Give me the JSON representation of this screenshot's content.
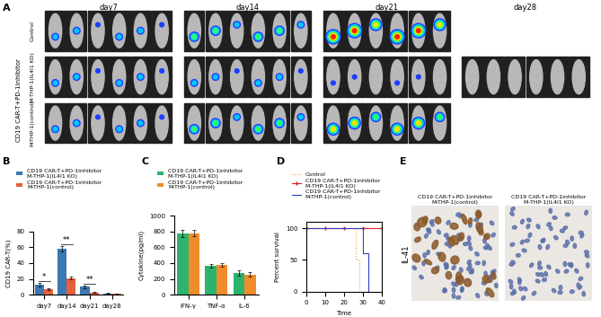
{
  "panel_labels": [
    "A",
    "B",
    "C",
    "D",
    "E"
  ],
  "imaging": {
    "days": [
      "day7",
      "day14",
      "day21",
      "day28"
    ],
    "group_label": "CD19 CAR-T+PD-1inhibitor",
    "rows": [
      "Control",
      "M-THP-1(IL4I1 KO)",
      "M-THP-1(control)"
    ],
    "mice": [
      [
        6,
        6,
        6,
        0
      ],
      [
        6,
        6,
        6,
        6
      ],
      [
        6,
        6,
        6,
        0
      ]
    ]
  },
  "chart_data": [
    {
      "type": "bar",
      "categories": [
        "day7",
        "day14",
        "day21",
        "day28"
      ],
      "y_label": "CD19 CAR-T(%)",
      "ylim": [
        0,
        80
      ],
      "yticks": [
        0,
        20,
        40,
        60,
        80
      ],
      "legend": "upper left",
      "series": [
        {
          "name": "CD19 CAR-T+PD-1inhibitor\nM-THP-1(IL4I1 KO)",
          "color": "#3c78b4",
          "values": [
            13,
            58,
            10,
            2
          ],
          "errors": [
            2,
            3,
            1.5,
            0.5
          ]
        },
        {
          "name": "CD19 CAR-T+PD-1inhibitor\nM-THP-1(control)",
          "color": "#e5603c",
          "values": [
            7,
            21,
            3,
            1
          ],
          "errors": [
            1,
            1.5,
            0.8,
            0.3
          ]
        }
      ],
      "annotations": [
        {
          "category": "day7",
          "text": "*"
        },
        {
          "category": "day14",
          "text": "**"
        },
        {
          "category": "day21",
          "text": "**"
        }
      ]
    },
    {
      "type": "bar",
      "categories": [
        "IFN-γ",
        "TNF-α",
        "IL-6"
      ],
      "y_label": "Cytokine(pg/ml)",
      "ylim": [
        0,
        1000
      ],
      "yticks": [
        0,
        200,
        400,
        600,
        800,
        1000
      ],
      "legend": "upper left",
      "series": [
        {
          "name": "CD19 CAR-T+PD-1inhibitor\nM-THP-1(IL4I1 KO)",
          "color": "#2db36b",
          "values": [
            770,
            365,
            275
          ],
          "errors": [
            45,
            25,
            35
          ]
        },
        {
          "name": "CD19 CAR-T+PD-1inhibitor\nM-THP-1(control)",
          "color": "#f08c2a",
          "values": [
            775,
            380,
            255
          ],
          "errors": [
            40,
            20,
            30
          ]
        }
      ],
      "annotations": []
    },
    {
      "type": "line",
      "x_label": "Time",
      "y_label": "Percent survival",
      "xlim": [
        0,
        40
      ],
      "xticks": [
        0,
        10,
        20,
        30,
        40
      ],
      "ylim": [
        0,
        110
      ],
      "yticks": [
        0,
        50,
        100
      ],
      "legend": "upper left",
      "series": [
        {
          "name": "Control",
          "color": "#e8a33d",
          "line_style": "dotted",
          "marker": "none",
          "x": [
            0,
            26,
            28
          ],
          "values": [
            100,
            50,
            0
          ]
        },
        {
          "name": "CD19 CAR-T+PD-1inhibitor\nM-THP-1(IL4I1 KO)",
          "color": "#e02020",
          "line_style": "solid",
          "marker": "plus",
          "x": [
            0,
            10,
            20,
            30,
            40
          ],
          "values": [
            100,
            100,
            100,
            100,
            100
          ]
        },
        {
          "name": "CD19 CAR-T+PD-1inhibitor\nM-THP-1(control)",
          "color": "#3040c0",
          "line_style": "solid",
          "marker": "none",
          "x": [
            0,
            30,
            33
          ],
          "values": [
            100,
            60,
            0
          ]
        }
      ]
    }
  ],
  "histology": {
    "row_label": "IL-41",
    "panels": [
      {
        "title": "CD19 CAR-T+PD-1inhibitor\nM-THP-1(control)"
      },
      {
        "title": "CD19 CAR-T+PD-1inhibitor\nM-THP-1(IL4I1 KO)"
      }
    ]
  }
}
